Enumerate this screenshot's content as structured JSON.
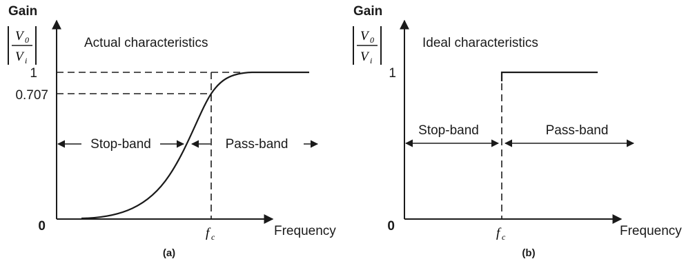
{
  "panel_a": {
    "gain_label": "Gain",
    "ratio_num": "V",
    "ratio_num_sub": "0",
    "ratio_den": "V",
    "ratio_den_sub": "i",
    "title": "Actual characteristics",
    "tick_one": "1",
    "tick_0707": "0.707",
    "origin": "0",
    "fc_label": "f",
    "fc_sub": "c",
    "x_label": "Frequency",
    "stop_band": "Stop-band",
    "pass_band": "Pass-band",
    "caption": "(a)"
  },
  "panel_b": {
    "gain_label": "Gain",
    "ratio_num": "V",
    "ratio_num_sub": "0",
    "ratio_den": "V",
    "ratio_den_sub": "i",
    "title": "Ideal characteristics",
    "tick_one": "1",
    "origin": "0",
    "fc_label": "f",
    "fc_sub": "c",
    "x_label": "Frequency",
    "stop_band": "Stop-band",
    "pass_band": "Pass-band",
    "caption": "(b)"
  },
  "colors": {
    "ink": "#1a1a1a",
    "background": "#ffffff"
  },
  "icons": [
    "up-arrow-icon",
    "right-arrow-icon",
    "left-arrow-icon"
  ]
}
